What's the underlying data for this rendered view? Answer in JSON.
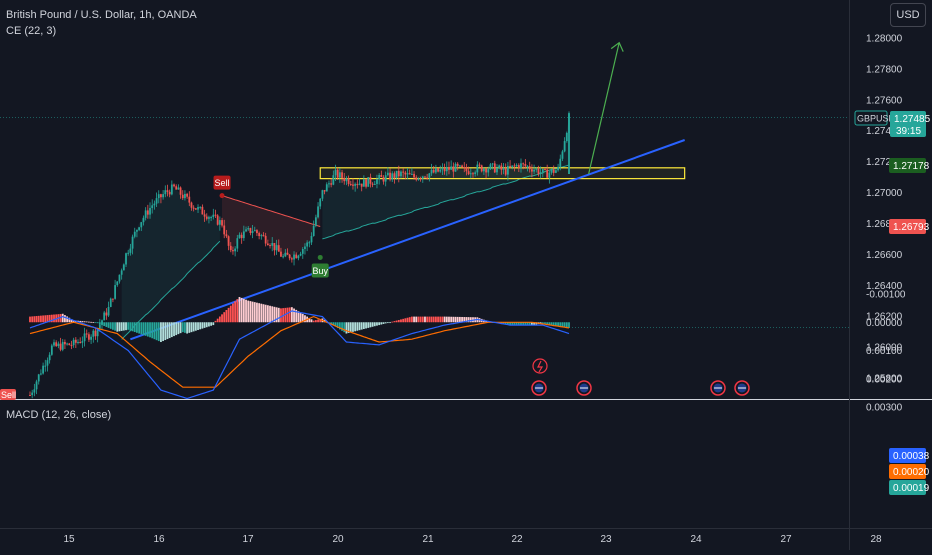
{
  "header": {
    "symbol_title": "British Pound / U.S. Dollar, 1h, OANDA",
    "indicator_ce": "CE (22, 3)",
    "currency": "USD"
  },
  "macd_panel": {
    "title": "MACD (12, 26, close)"
  },
  "price_badges": {
    "symbol": "GBPUSD",
    "last_price": "1.27485",
    "countdown": "39:15",
    "ce_long_stop": "1.27178",
    "ce_short_stop": "1.26793"
  },
  "macd_badges": {
    "macd": "0.00038",
    "signal": "0.00020",
    "histogram": "0.00019"
  },
  "signals": {
    "sell": "Sell",
    "buy": "Buy"
  },
  "colors": {
    "background": "#131722",
    "bull": "#26a69a",
    "bear": "#ef5350",
    "ce_long": "#26a69a",
    "ce_short": "#ef5350",
    "macd_line": "#2962ff",
    "signal_line": "#ff6d00",
    "trendline": "#2962ff",
    "arrow": "#4caf50",
    "zone_border": "#ffeb3b",
    "axis_text": "#d1d4dc"
  },
  "chart_data": [
    {
      "type": "candlestick",
      "title": "British Pound / U.S. Dollar, 1h, OANDA",
      "y_ticks": [
        "1.28000",
        "1.27800",
        "1.27600",
        "1.27400",
        "1.27200",
        "1.27000",
        "1.26800",
        "1.26600",
        "1.26400",
        "1.26200",
        "1.26000",
        "1.25800"
      ],
      "x_ticks": [
        "15",
        "16",
        "17",
        "20",
        "21",
        "22",
        "23",
        "24",
        "27",
        "28"
      ],
      "ylim": [
        1.2568,
        1.2818
      ],
      "last_price": 1.27485,
      "ohlc_anchor": [
        [
          0,
          1.2569
        ],
        [
          10,
          1.26
        ],
        [
          20,
          1.2602
        ],
        [
          30,
          1.261
        ],
        [
          36,
          1.2625
        ],
        [
          44,
          1.266
        ],
        [
          50,
          1.268
        ],
        [
          56,
          1.2692
        ],
        [
          62,
          1.27
        ],
        [
          66,
          1.2703
        ],
        [
          70,
          1.2698
        ],
        [
          76,
          1.269
        ],
        [
          82,
          1.2685
        ],
        [
          88,
          1.268
        ],
        [
          92,
          1.266
        ],
        [
          96,
          1.2672
        ],
        [
          102,
          1.2676
        ],
        [
          110,
          1.2668
        ],
        [
          116,
          1.2658
        ],
        [
          122,
          1.266
        ],
        [
          128,
          1.2668
        ],
        [
          134,
          1.27
        ],
        [
          140,
          1.2712
        ],
        [
          146,
          1.2708
        ],
        [
          152,
          1.2706
        ],
        [
          158,
          1.2708
        ],
        [
          164,
          1.271
        ],
        [
          170,
          1.2712
        ],
        [
          176,
          1.271
        ],
        [
          182,
          1.2712
        ],
        [
          188,
          1.2714
        ],
        [
          194,
          1.2716
        ],
        [
          200,
          1.2714
        ],
        [
          206,
          1.2716
        ],
        [
          212,
          1.2716
        ],
        [
          218,
          1.2714
        ],
        [
          224,
          1.2718
        ],
        [
          230,
          1.2716
        ],
        [
          236,
          1.2712
        ],
        [
          242,
          1.2715
        ],
        [
          247,
          1.2748
        ]
      ],
      "chandelier_exit": {
        "short_stop_segment": {
          "start_index": 88,
          "end_index": 133,
          "level_start": 1.2698,
          "level_end": 1.2678
        },
        "long_stop_segments": [
          {
            "start_index": 42,
            "end_index": 87,
            "level_start": 1.2605,
            "level_end": 1.2668
          },
          {
            "start_index": 134,
            "end_index": 247,
            "level_start": 1.267,
            "level_end": 1.27178
          }
        ],
        "sell_signals": [
          {
            "index": 0,
            "price": 1.2569
          },
          {
            "index": 88,
            "price": 1.2698
          }
        ],
        "buy_signals": [
          {
            "index": 133,
            "price": 1.2658
          }
        ]
      },
      "drawings": {
        "support_trendline": {
          "from_index": 46,
          "from_price": 1.2605,
          "to_index": 300,
          "to_price": 1.2734
        },
        "resistance_zone": {
          "from_index": 133,
          "to_index": 300,
          "price_top": 1.2716,
          "price_bottom": 1.2709
        },
        "forecast_arrow": {
          "from_index": 256,
          "from_price": 1.2712,
          "to_index": 270,
          "to_price": 1.2797
        }
      }
    },
    {
      "type": "macd",
      "title": "MACD (12, 26, close)",
      "y_ticks": [
        "0.00300",
        "0.00200",
        "0.00100",
        "0.00000",
        "-0.00100"
      ],
      "ylim": [
        -0.00115,
        0.00305
      ],
      "macd": 0.00038,
      "signal": 0.0002,
      "histogram": 0.00019,
      "macd_anchor": [
        [
          0,
          0.0002
        ],
        [
          15,
          -0.0002
        ],
        [
          30,
          0.0002
        ],
        [
          45,
          0.001
        ],
        [
          60,
          0.0024
        ],
        [
          72,
          0.0027
        ],
        [
          84,
          0.0024
        ],
        [
          96,
          0.0006
        ],
        [
          108,
          0.0001
        ],
        [
          120,
          -0.0004
        ],
        [
          134,
          -0.0002
        ],
        [
          145,
          0.0007
        ],
        [
          160,
          0.0008
        ],
        [
          175,
          0.0004
        ],
        [
          190,
          0.0001
        ],
        [
          205,
          -0.0001
        ],
        [
          220,
          0.0001
        ],
        [
          235,
          0.0001
        ],
        [
          247,
          0.0004
        ]
      ],
      "signal_anchor": [
        [
          0,
          0.0004
        ],
        [
          20,
          0.0
        ],
        [
          40,
          0.0004
        ],
        [
          55,
          0.0014
        ],
        [
          70,
          0.0023
        ],
        [
          85,
          0.0023
        ],
        [
          100,
          0.0012
        ],
        [
          115,
          0.0003
        ],
        [
          130,
          -0.0002
        ],
        [
          145,
          0.0003
        ],
        [
          160,
          0.0007
        ],
        [
          175,
          0.0006
        ],
        [
          190,
          0.0003
        ],
        [
          210,
          0.0
        ],
        [
          230,
          0.0
        ],
        [
          247,
          0.0002
        ]
      ]
    }
  ]
}
